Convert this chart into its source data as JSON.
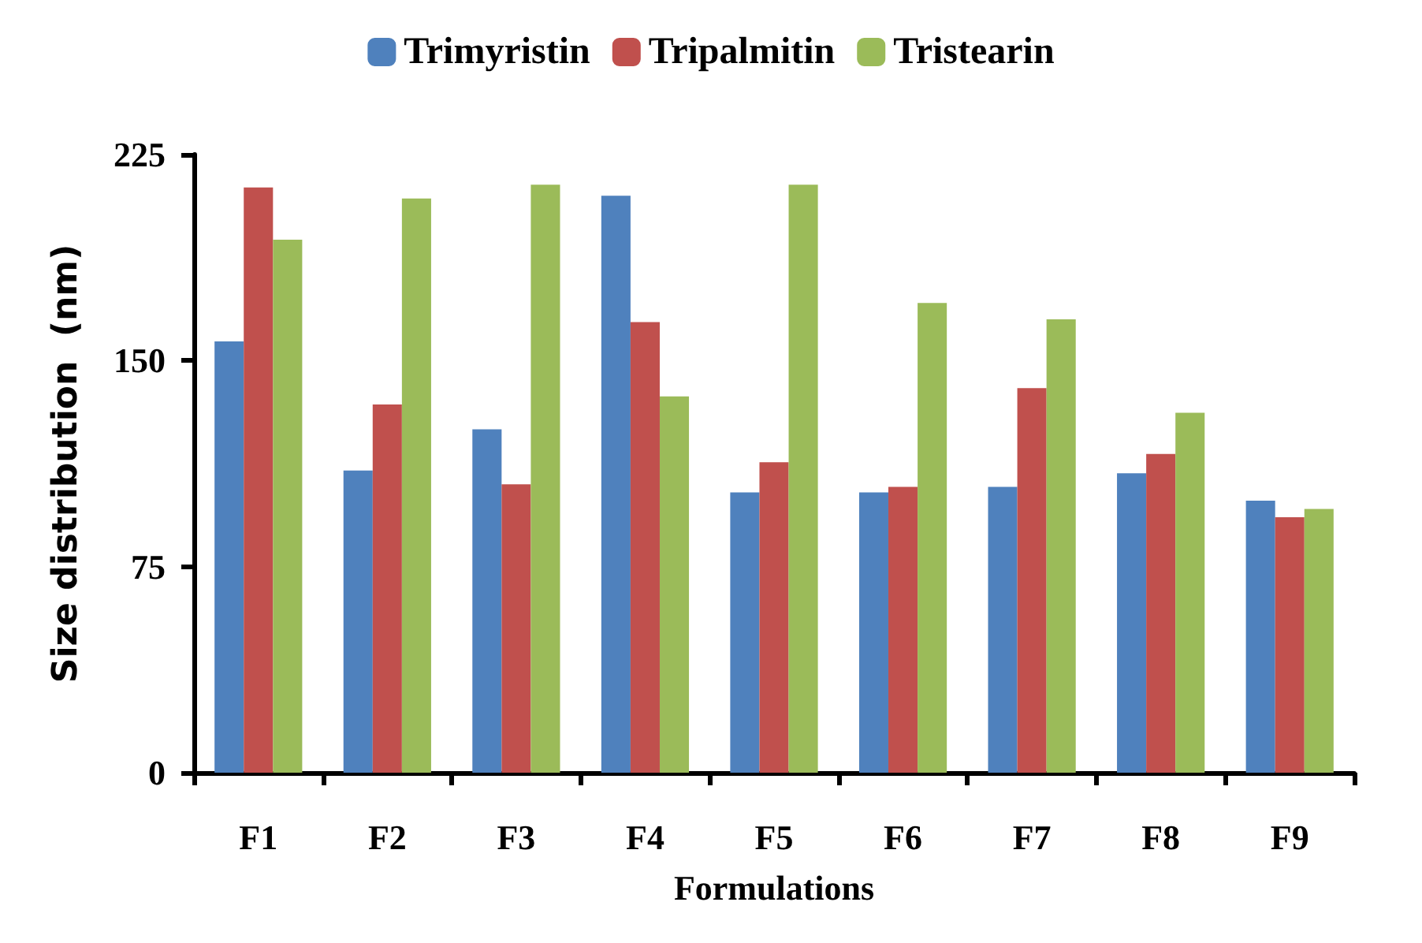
{
  "chart_data": {
    "type": "bar",
    "xlabel": "Formulations",
    "ylabel": "Size distribution  (nm)",
    "categories": [
      "F1",
      "F2",
      "F3",
      "F4",
      "F5",
      "F6",
      "F7",
      "F8",
      "F9"
    ],
    "series": [
      {
        "name": "Trimyristin",
        "color": "#4f81bd",
        "values": [
          157,
          110,
          125,
          210,
          102,
          102,
          104,
          109,
          99
        ]
      },
      {
        "name": "Tripalmitin",
        "color": "#c0504d",
        "values": [
          213,
          134,
          105,
          164,
          113,
          104,
          140,
          116,
          93
        ]
      },
      {
        "name": "Tristearin",
        "color": "#9bbb59",
        "values": [
          194,
          209,
          214,
          137,
          214,
          171,
          165,
          131,
          96
        ]
      }
    ],
    "ylim": [
      0,
      225
    ],
    "yticks": [
      0,
      75,
      150,
      225
    ],
    "grid": false,
    "legend": "top"
  }
}
